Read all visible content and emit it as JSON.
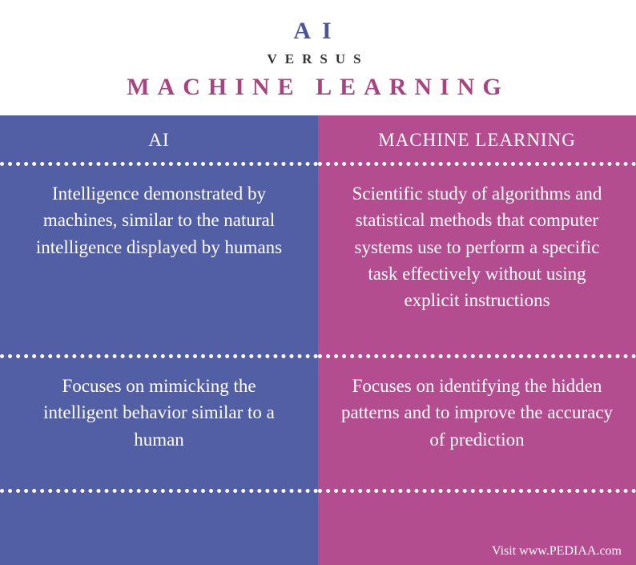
{
  "header": {
    "title_left": "AI",
    "versus": "VERSUS",
    "title_right": "MACHINE LEARNING",
    "title_left_color": "#4a5699",
    "title_right_color": "#a84382"
  },
  "columns": {
    "left": {
      "label": "AI",
      "bg_color": "#535fa4",
      "definition": "Intelligence demonstrated by machines, similar to the natural intelligence displayed by humans",
      "focus": "Focuses on mimicking the intelligent behavior similar to a human"
    },
    "right": {
      "label": "MACHINE LEARNING",
      "bg_color": "#b34d8f",
      "definition": "Scientific study of algorithms and statistical methods that computer systems use to perform a specific task effectively without using explicit instructions",
      "focus": "Focuses on identifying the hidden patterns and to improve the accuracy of prediction"
    }
  },
  "footer": {
    "text": "Visit www.PEDIAA.com"
  },
  "style": {
    "dotted_border_color": "#ffffff",
    "text_color": "#ffffff",
    "header_bg": "#ffffff"
  }
}
